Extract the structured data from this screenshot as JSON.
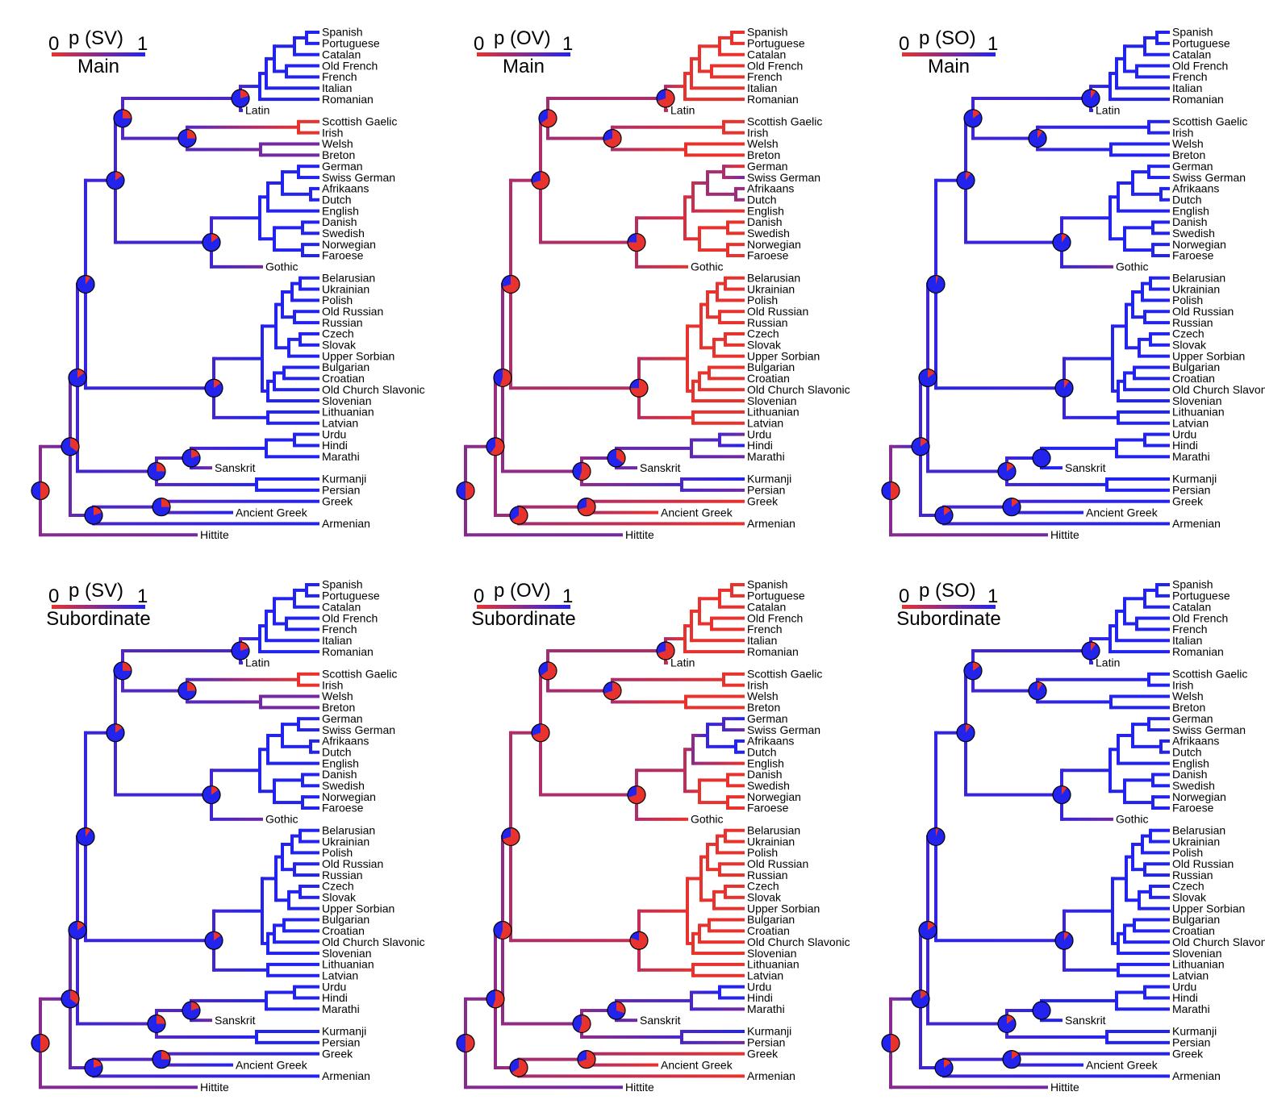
{
  "colors": {
    "low": "#e8322e",
    "high": "#2323ee",
    "mid": "#8c2fc0",
    "pie_stroke": "#000000"
  },
  "legend": {
    "tick_low": "0",
    "tick_high": "1"
  },
  "taxa": [
    "Spanish",
    "Portuguese",
    "Catalan",
    "Old French",
    "French",
    "Italian",
    "Romanian",
    "Latin",
    "Scottish Gaelic",
    "Irish",
    "Welsh",
    "Breton",
    "German",
    "Swiss German",
    "Afrikaans",
    "Dutch",
    "English",
    "Danish",
    "Swedish",
    "Norwegian",
    "Faroese",
    "Gothic",
    "Belarusian",
    "Ukrainian",
    "Polish",
    "Old Russian",
    "Russian",
    "Czech",
    "Slovak",
    "Upper Sorbian",
    "Bulgarian",
    "Croatian",
    "Old Church Slavonic",
    "Slovenian",
    "Lithuanian",
    "Latvian",
    "Urdu",
    "Hindi",
    "Marathi",
    "Sanskrit",
    "Kurmanji",
    "Persian",
    "Greek",
    "Ancient Greek",
    "Armenian",
    "Hittite"
  ],
  "panels": [
    {
      "title": "p (SV)",
      "clause": "Main",
      "leaf_p": [
        1,
        1,
        1,
        1,
        1,
        1,
        1,
        1,
        0,
        0,
        0.6,
        0.6,
        1,
        1,
        1,
        1,
        1,
        1,
        1,
        1,
        1,
        0.6,
        1,
        1,
        1,
        1,
        1,
        1,
        1,
        1,
        1,
        1,
        1,
        1,
        1,
        1,
        1,
        1,
        1,
        0.6,
        1,
        1,
        1,
        1,
        1,
        0.6
      ],
      "node_p": {
        "root": 0.5,
        "n1": 0.65,
        "n2": 0.75,
        "ital": 0.8,
        "celt": 0.75,
        "germ": 0.85,
        "ic": 0.75,
        "ii": 0.75,
        "slav": 0.85,
        "grk": 0.75,
        "arm": 0.8,
        "upper": 0.85,
        "cg": 0.85,
        "ig": 0.85,
        "bs": 0.9
      }
    },
    {
      "title": "p (OV)",
      "clause": "Main",
      "leaf_p": [
        0,
        0,
        0,
        0,
        0,
        0,
        0,
        0,
        0,
        0,
        0,
        0,
        0,
        0.6,
        0.4,
        0.4,
        0,
        0,
        0,
        0,
        0,
        0,
        0,
        0,
        0,
        0,
        0,
        0,
        0,
        0,
        0,
        0,
        0,
        0,
        0,
        0,
        0.6,
        1,
        0.6,
        0.6,
        1,
        0.6,
        0,
        0,
        0,
        0.6
      ],
      "node_p": {
        "root": 0.5,
        "n1": 0.4,
        "n2": 0.3,
        "ital": 0.3,
        "celt": 0.3,
        "germ": 0.25,
        "ic": 0.35,
        "ii": 0.45,
        "slav": 0.25,
        "grk": 0.3,
        "arm": 0.35,
        "upper": 0.3,
        "cg": 0.25,
        "ig": 0.45,
        "bs": 0.3
      }
    },
    {
      "title": "p (SO)",
      "clause": "Main",
      "leaf_p": [
        1,
        1,
        1,
        1,
        1,
        1,
        1,
        1,
        1,
        1,
        1,
        1,
        1,
        1,
        1,
        1,
        1,
        1,
        1,
        1,
        1,
        0.6,
        1,
        1,
        1,
        1,
        1,
        1,
        1,
        1,
        1,
        1,
        1,
        1,
        1,
        1,
        1,
        1,
        1,
        1,
        1,
        1,
        1,
        1,
        1,
        0.6
      ],
      "node_p": {
        "root": 0.5,
        "n1": 0.85,
        "n2": 0.8,
        "ital": 0.9,
        "celt": 0.9,
        "germ": 0.9,
        "ic": 0.85,
        "ii": 0.85,
        "slav": 0.9,
        "grk": 0.85,
        "arm": 0.85,
        "upper": 0.9,
        "cg": 0.9,
        "ig": 0.85,
        "bs": 0.95
      }
    },
    {
      "title": "p (SV)",
      "clause": "Subordinate",
      "leaf_p": [
        1,
        1,
        1,
        1,
        1,
        1,
        1,
        1,
        0,
        0,
        0.6,
        0.6,
        1,
        1,
        1,
        1,
        1,
        1,
        1,
        1,
        1,
        0.6,
        1,
        1,
        1,
        1,
        1,
        1,
        1,
        1,
        1,
        1,
        1,
        1,
        1,
        1,
        1,
        1,
        1,
        0.6,
        1,
        1,
        1,
        1,
        1,
        0.6
      ],
      "node_p": {
        "root": 0.5,
        "n1": 0.65,
        "n2": 0.75,
        "ital": 0.8,
        "celt": 0.75,
        "germ": 0.85,
        "ic": 0.75,
        "ii": 0.75,
        "slav": 0.85,
        "grk": 0.75,
        "arm": 0.8,
        "upper": 0.85,
        "cg": 0.85,
        "ig": 0.85,
        "bs": 0.9
      }
    },
    {
      "title": "p (OV)",
      "clause": "Subordinate",
      "leaf_p": [
        0,
        0,
        0,
        0,
        0,
        0,
        0,
        0,
        0,
        0,
        0,
        0,
        1,
        0.6,
        1,
        1,
        0,
        0,
        0,
        0,
        0,
        0,
        0,
        0,
        0,
        0,
        0,
        0,
        0,
        0,
        0,
        0,
        0,
        0,
        0,
        0,
        1,
        1,
        0.6,
        0.6,
        1,
        0.6,
        0,
        0,
        0,
        0.6
      ],
      "node_p": {
        "root": 0.5,
        "n1": 0.45,
        "n2": 0.3,
        "ital": 0.3,
        "celt": 0.3,
        "germ": 0.3,
        "ic": 0.35,
        "ii": 0.45,
        "slav": 0.2,
        "grk": 0.3,
        "arm": 0.35,
        "upper": 0.3,
        "cg": 0.25,
        "ig": 0.45,
        "bs": 0.3
      }
    },
    {
      "title": "p (SO)",
      "clause": "Subordinate",
      "leaf_p": [
        1,
        1,
        1,
        1,
        1,
        1,
        1,
        1,
        1,
        1,
        1,
        1,
        1,
        1,
        1,
        1,
        1,
        1,
        1,
        1,
        1,
        0.6,
        1,
        1,
        1,
        1,
        1,
        1,
        1,
        1,
        1,
        1,
        1,
        1,
        1,
        1,
        1,
        1,
        1,
        1,
        1,
        1,
        1,
        1,
        1,
        0.6
      ],
      "node_p": {
        "root": 0.5,
        "n1": 0.85,
        "n2": 0.8,
        "ital": 0.9,
        "celt": 0.9,
        "germ": 0.9,
        "ic": 0.85,
        "ii": 0.85,
        "slav": 0.9,
        "grk": 0.85,
        "arm": 0.85,
        "upper": 0.9,
        "cg": 0.9,
        "ig": 0.85,
        "bs": 0.95
      }
    }
  ]
}
